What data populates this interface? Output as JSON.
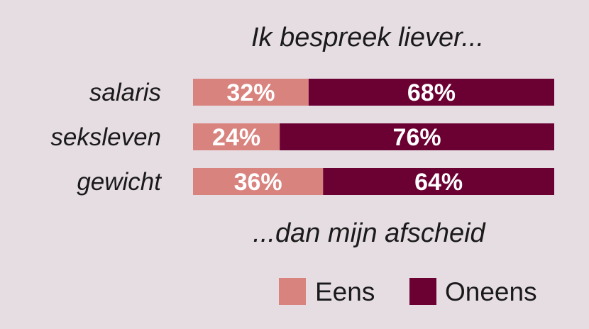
{
  "chart_data": {
    "type": "bar",
    "orientation": "horizontal",
    "stacked": true,
    "title": "Ik bespreek liever...",
    "subtitle": "...dan mijn afscheid",
    "categories": [
      "salaris",
      "seksleven",
      "gewicht"
    ],
    "series": [
      {
        "name": "Eens",
        "values": [
          32,
          24,
          36
        ],
        "labels": [
          "32%",
          "24%",
          "36%"
        ],
        "color": "#d9837f"
      },
      {
        "name": "Oneens",
        "values": [
          68,
          76,
          64
        ],
        "labels": [
          "68%",
          "76%",
          "64%"
        ],
        "color": "#6b0033"
      }
    ],
    "xlim": [
      0,
      100
    ],
    "grid": false,
    "legend_position": "bottom-right"
  },
  "colors": {
    "background": "#e6dde3",
    "text": "#1a1a1a",
    "bar_label": "#ffffff"
  }
}
